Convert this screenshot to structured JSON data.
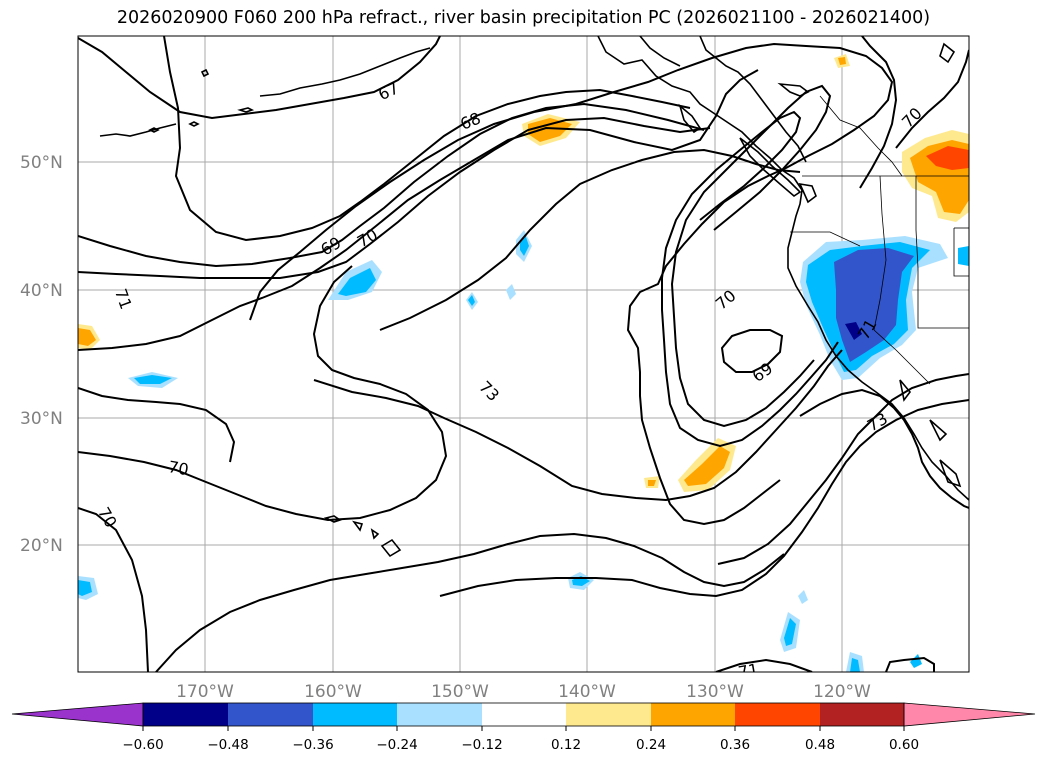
{
  "title": "2026020900 F060 200 hPa refract., river basin precipitation PC (2026021100 - 2026021400)",
  "latitude_labels": [
    "50°N",
    "40°N",
    "30°N",
    "20°N"
  ],
  "longitude_labels": [
    "170°W",
    "160°W",
    "150°W",
    "140°W",
    "130°W",
    "120°W"
  ],
  "contour_labels": [
    "67",
    "68",
    "69",
    "70",
    "71",
    "73",
    "70",
    "69",
    "70",
    "71",
    "73",
    "70",
    "70",
    "71"
  ],
  "colorbar": {
    "ticks": [
      "−0.60",
      "−0.48",
      "−0.36",
      "−0.24",
      "−0.12",
      "0.12",
      "0.24",
      "0.36",
      "0.48",
      "0.60"
    ],
    "colors": [
      "#9933cc",
      "#000088",
      "#3355cc",
      "#00bbff",
      "#aae0ff",
      "#ffffff",
      "#ffe98f",
      "#ffa500",
      "#ff4500",
      "#b22222",
      "#ff88aa"
    ]
  },
  "fill_colors": {
    "light_blue": "#aae0ff",
    "blue": "#00bbff",
    "medium_blue": "#3355cc",
    "navy": "#000088",
    "yellow": "#ffe98f",
    "orange": "#ffa500",
    "red_orange": "#ff4500"
  }
}
